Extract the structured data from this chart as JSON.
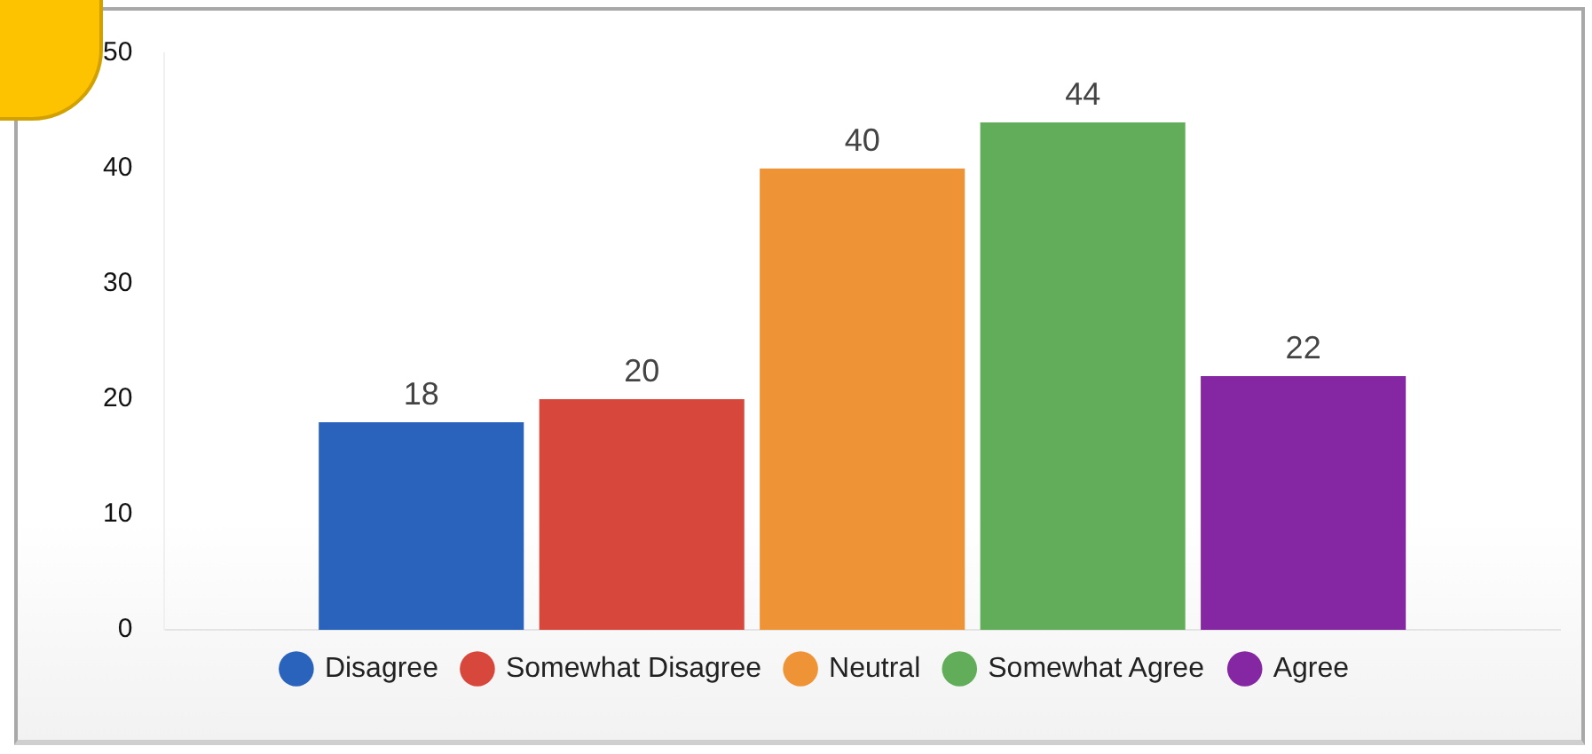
{
  "chart_data": {
    "type": "bar",
    "categories": [
      null
    ],
    "series": [
      {
        "name": "Disagree",
        "color": "#2a63bb",
        "values": [
          18
        ]
      },
      {
        "name": "Somewhat Disagree",
        "color": "#d8473b",
        "values": [
          20
        ]
      },
      {
        "name": "Neutral",
        "color": "#ef9337",
        "values": [
          40
        ]
      },
      {
        "name": "Somewhat Agree",
        "color": "#62ad5a",
        "values": [
          44
        ]
      },
      {
        "name": "Agree",
        "color": "#8527a3",
        "values": [
          22
        ]
      }
    ],
    "ylim": [
      0,
      50
    ],
    "yticks": [
      0,
      10,
      20,
      30,
      40,
      50
    ],
    "grid": false,
    "legend": "bottom",
    "data_labels": true
  }
}
